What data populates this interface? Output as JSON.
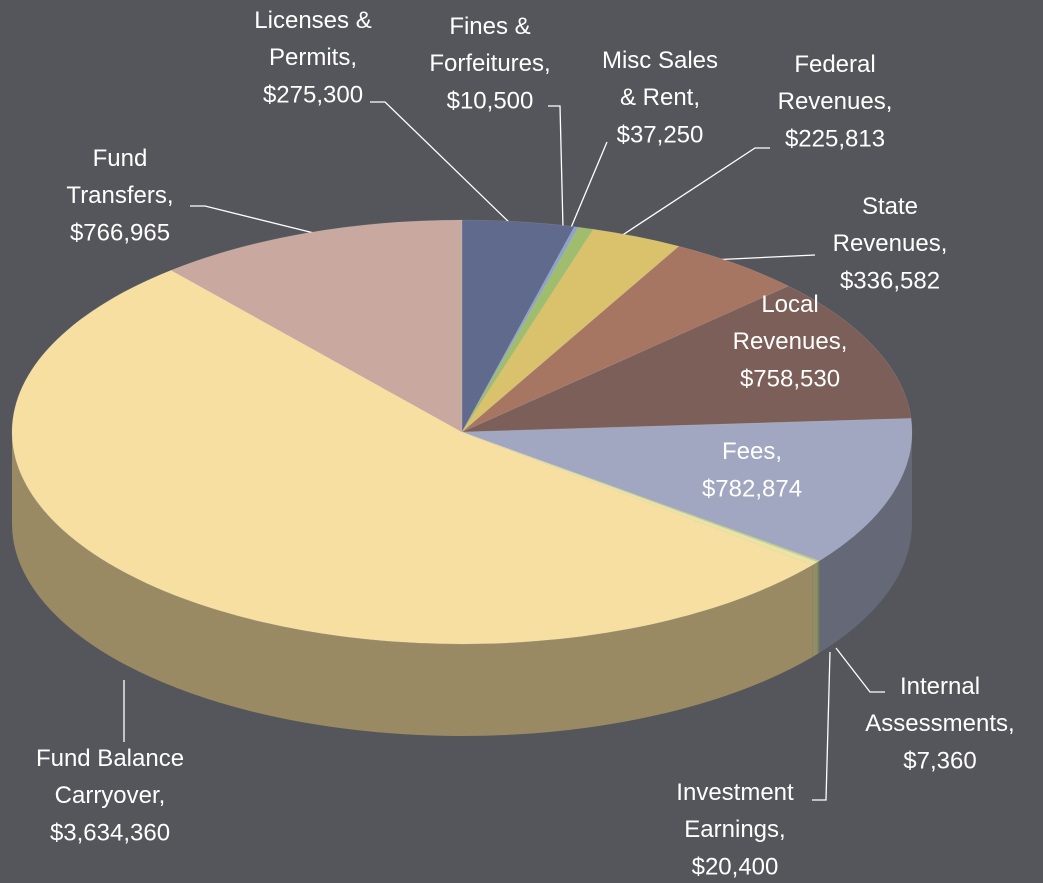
{
  "chart_data": {
    "type": "pie3d",
    "categories": [
      "Licenses & Permits,",
      "Fines & Forfeitures,",
      "Misc Sales & Rent,",
      "Federal Revenues,",
      "State Revenues,",
      "Local Revenues,",
      "Fees,",
      "Internal Assessments,",
      "Investment Earnings,",
      "Fund Balance Carryover,",
      "Fund Transfers,"
    ],
    "values": [
      275300,
      10500,
      37250,
      225813,
      336582,
      758530,
      782874,
      7360,
      20400,
      3634360,
      766965
    ],
    "value_labels": [
      "$275,300",
      "$10,500",
      "$37,250",
      "$225,813",
      "$336,582",
      "$758,530",
      "$782,874",
      "$7,360",
      "$20,400",
      "$3,634,360",
      "$766,965"
    ],
    "colors": [
      "#5f6a8d",
      "#8ea3c9",
      "#9fbd6c",
      "#d9c26b",
      "#a67663",
      "#7b5f58",
      "#a1a7c0",
      "#bcd28c",
      "#ebe3a4",
      "#f6dfa1",
      "#c8a89f"
    ]
  }
}
